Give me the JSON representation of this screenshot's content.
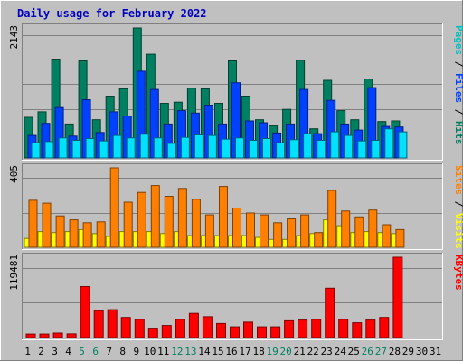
{
  "chart_data": {
    "type": "bar",
    "title": "Daily usage for February 2022",
    "days": [
      "1",
      "2",
      "3",
      "4",
      "5",
      "6",
      "7",
      "8",
      "9",
      "10",
      "11",
      "12",
      "13",
      "14",
      "15",
      "16",
      "17",
      "18",
      "19",
      "20",
      "21",
      "22",
      "23",
      "24",
      "25",
      "26",
      "27",
      "28",
      "29",
      "30",
      "31"
    ],
    "weekend_days": [
      "5",
      "6",
      "12",
      "13",
      "19",
      "20",
      "26",
      "27"
    ],
    "panels": [
      {
        "name": "top",
        "max_label": "2143",
        "ymax": 2143,
        "right_label": [
          {
            "text": "Pages",
            "color": "#00c0c0"
          },
          {
            "text": " / ",
            "color": "#000000"
          },
          {
            "text": "Files",
            "color": "#0040ff"
          },
          {
            "text": " / ",
            "color": "#000000"
          },
          {
            "text": "Hits",
            "color": "#008060"
          }
        ],
        "series": [
          {
            "name": "Hits",
            "color": "#008060",
            "values": [
              670,
              760,
              1630,
              560,
              1600,
              630,
              1020,
              1140,
              2143,
              1710,
              900,
              920,
              1150,
              1140,
              900,
              1600,
              1020,
              630,
              530,
              800,
              1610,
              480,
              1280,
              780,
              630,
              1300,
              600,
              610
            ]
          },
          {
            "name": "Files",
            "color": "#0040ff",
            "values": [
              370,
              570,
              830,
              360,
              960,
              420,
              760,
              690,
              1430,
              1130,
              560,
              780,
              740,
              870,
              560,
              1240,
              610,
              580,
              410,
              560,
              1130,
              400,
              950,
              560,
              460,
              1160,
              520,
              510
            ]
          },
          {
            "name": "Pages",
            "color": "#00e0ff",
            "values": [
              250,
              270,
              330,
              290,
              320,
              280,
              370,
              330,
              390,
              330,
              240,
              340,
              380,
              370,
              310,
              330,
              290,
              320,
              250,
              300,
              400,
              290,
              430,
              370,
              280,
              290,
              480,
              430
            ]
          }
        ]
      },
      {
        "name": "middle",
        "max_label": "405",
        "ymax": 405,
        "right_label": [
          {
            "text": "Sites",
            "color": "#ff8000"
          },
          {
            "text": " / ",
            "color": "#000000"
          },
          {
            "text": "Visits",
            "color": "#ffff00"
          }
        ],
        "series": [
          {
            "name": "Visits",
            "color": "#ffff00",
            "values": [
              45,
              80,
              75,
              80,
              90,
              70,
              55,
              80,
              80,
              80,
              70,
              80,
              60,
              60,
              60,
              60,
              60,
              50,
              40,
              40,
              60,
              70,
              140,
              110,
              75,
              80,
              75,
              70
            ]
          },
          {
            "name": "Sites",
            "color": "#ff8000",
            "values": [
              240,
              225,
              160,
              140,
              125,
              130,
              405,
              230,
              280,
              315,
              260,
              300,
              245,
              165,
              310,
              200,
              175,
              165,
              125,
              145,
              165,
              75,
              290,
              185,
              155,
              190,
              115,
              90
            ]
          }
        ]
      },
      {
        "name": "bottom",
        "max_label": "119481",
        "ymax": 119481,
        "right_label": [
          {
            "text": "KBytes",
            "color": "#ff0000"
          }
        ],
        "series": [
          {
            "name": "KBytes",
            "color": "#ff0000",
            "values": [
              5300,
              5300,
              6700,
              5500,
              75800,
              40000,
              41500,
              30000,
              27000,
              14000,
              18000,
              27000,
              36000,
              31000,
              21000,
              16000,
              23000,
              16000,
              16000,
              25000,
              26000,
              27000,
              73500,
              27000,
              22000,
              26000,
              30000,
              119481
            ]
          }
        ]
      }
    ]
  }
}
